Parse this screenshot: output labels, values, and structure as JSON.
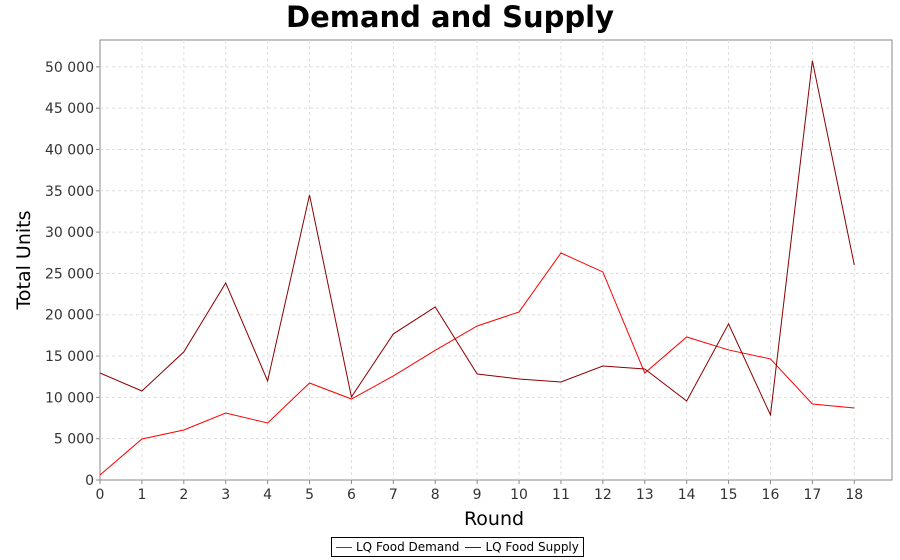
{
  "chart_data": {
    "type": "line",
    "title": "Demand and Supply",
    "xlabel": "Round",
    "ylabel": "Total Units",
    "x": [
      0,
      1,
      2,
      3,
      4,
      5,
      6,
      7,
      8,
      9,
      10,
      11,
      12,
      13,
      14,
      15,
      16,
      17,
      18
    ],
    "xlim": [
      0,
      18.9
    ],
    "ylim": [
      0,
      53250
    ],
    "yticks": [
      0,
      5000,
      10000,
      15000,
      20000,
      25000,
      30000,
      35000,
      40000,
      45000,
      50000
    ],
    "ytick_labels": [
      "0",
      "5 000",
      "10 000",
      "15 000",
      "20 000",
      "25 000",
      "30 000",
      "35 000",
      "40 000",
      "45 000",
      "50 000"
    ],
    "grid": true,
    "legend_position": "bottom-center",
    "series": [
      {
        "name": "LQ Food Demand",
        "color": "#ff0000",
        "values": [
          600,
          4960,
          6050,
          8100,
          6900,
          11740,
          9800,
          12600,
          15700,
          18640,
          20340,
          27480,
          25180,
          12950,
          17310,
          15740,
          14650,
          9200,
          8720
        ]
      },
      {
        "name": "LQ Food Supply",
        "color": "#8b0000",
        "values": [
          12950,
          10770,
          15500,
          23850,
          11990,
          34500,
          10050,
          17680,
          20940,
          12830,
          12230,
          11860,
          13800,
          13440,
          9560,
          18890,
          7870,
          50730,
          26030
        ]
      }
    ]
  }
}
